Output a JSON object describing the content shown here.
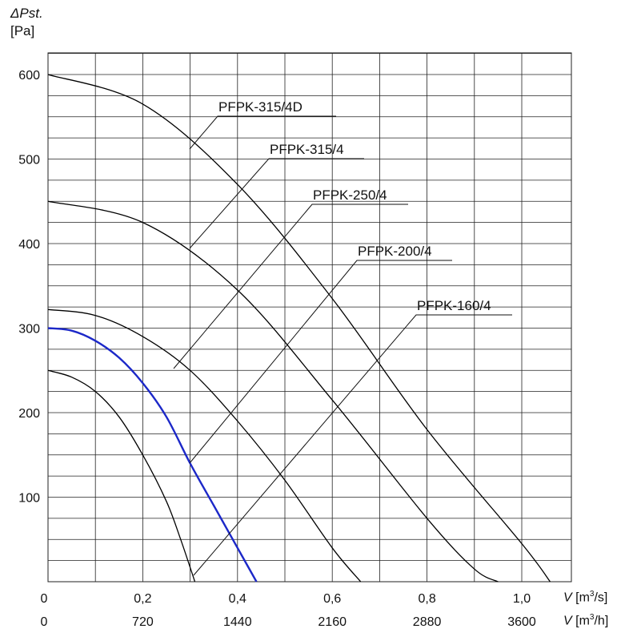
{
  "chart_data": {
    "type": "line",
    "ylabel_symbol": "ΔPst.",
    "ylabel_unit": "[Pa]",
    "x_unit_primary": "V [m³/s]",
    "x_unit_secondary": "V [m³/h]",
    "x_unit_primary_symbol": "V",
    "x_unit_primary_bracket": "[m",
    "x_unit_primary_exp": "3",
    "x_unit_primary_tail": "/s]",
    "x_unit_secondary_symbol": "V",
    "x_unit_secondary_bracket": "[m",
    "x_unit_secondary_exp": "3",
    "x_unit_secondary_tail": "/h]",
    "xlim": [
      0,
      1.1
    ],
    "ylim": [
      0,
      650
    ],
    "x_ticks": [
      "0",
      "0,2",
      "0,4",
      "0,6",
      "0,8",
      "1,0"
    ],
    "x_ticks_secondary": [
      "0",
      "720",
      "1440",
      "2160",
      "2880",
      "3600"
    ],
    "y_ticks": [
      "100",
      "200",
      "300",
      "400",
      "500",
      "600"
    ],
    "grid": true,
    "series": [
      {
        "name": "PFPK-315/4D",
        "color": "#000000",
        "x": [
          0,
          0.2,
          0.4,
          0.6,
          0.8,
          1.0,
          1.06
        ],
        "y": [
          600,
          565,
          470,
          335,
          180,
          45,
          0
        ]
      },
      {
        "name": "PFPK-315/4",
        "color": "#000000",
        "x": [
          0,
          0.2,
          0.4,
          0.6,
          0.8,
          0.9,
          0.95
        ],
        "y": [
          450,
          425,
          345,
          215,
          75,
          15,
          0
        ]
      },
      {
        "name": "PFPK-250/4",
        "color": "#000000",
        "x": [
          0,
          0.1,
          0.2,
          0.3,
          0.4,
          0.5,
          0.6,
          0.66
        ],
        "y": [
          322,
          315,
          290,
          250,
          190,
          120,
          40,
          0
        ]
      },
      {
        "name": "PFPK-200/4",
        "color": "#1c28c8",
        "x": [
          0,
          0.05,
          0.1,
          0.15,
          0.2,
          0.25,
          0.3,
          0.35,
          0.4,
          0.44
        ],
        "y": [
          300,
          297,
          285,
          265,
          235,
          195,
          140,
          90,
          40,
          0
        ]
      },
      {
        "name": "PFPK-160/4",
        "color": "#000000",
        "x": [
          0,
          0.05,
          0.1,
          0.15,
          0.2,
          0.25,
          0.28,
          0.31
        ],
        "y": [
          250,
          242,
          225,
          195,
          150,
          95,
          50,
          0
        ]
      }
    ]
  }
}
